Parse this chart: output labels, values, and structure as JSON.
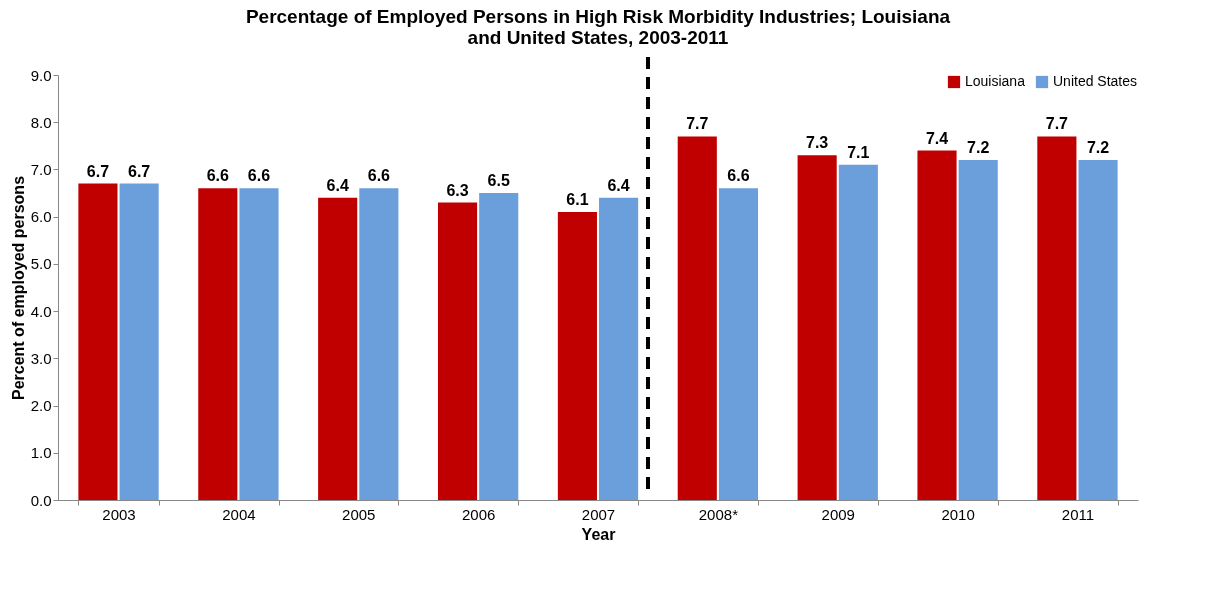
{
  "chart_data": {
    "type": "bar",
    "title": "Percentage of Employed Persons in High Risk Morbidity Industries; Louisiana and United States, 2003-2011",
    "xlabel": "Year",
    "ylabel": "Percent of employed persons",
    "categories": [
      "2003",
      "2004",
      "2005",
      "2006",
      "2007",
      "2008*",
      "2009",
      "2010",
      "2011"
    ],
    "series": [
      {
        "name": "Louisiana",
        "color": "#c00000",
        "values": [
          6.7,
          6.6,
          6.4,
          6.3,
          6.1,
          7.7,
          7.3,
          7.4,
          7.7
        ]
      },
      {
        "name": "United States",
        "color": "#6a9fdc",
        "values": [
          6.7,
          6.6,
          6.6,
          6.5,
          6.4,
          6.6,
          7.1,
          7.2,
          7.2
        ]
      }
    ],
    "ylim": [
      0,
      9
    ],
    "yticks": [
      {
        "value": 0,
        "label": "0.0"
      },
      {
        "value": 1,
        "label": "1.0"
      },
      {
        "value": 2,
        "label": "2.0"
      },
      {
        "value": 3,
        "label": "3.0"
      },
      {
        "value": 4,
        "label": "4.0"
      },
      {
        "value": 5,
        "label": "5.0"
      },
      {
        "value": 6,
        "label": "6.0"
      },
      {
        "value": 7,
        "label": "7.0"
      },
      {
        "value": 8,
        "label": "8.0"
      },
      {
        "value": 9,
        "label": "9.0"
      }
    ],
    "data_labels": true,
    "legend": "top right",
    "grid": false
  }
}
